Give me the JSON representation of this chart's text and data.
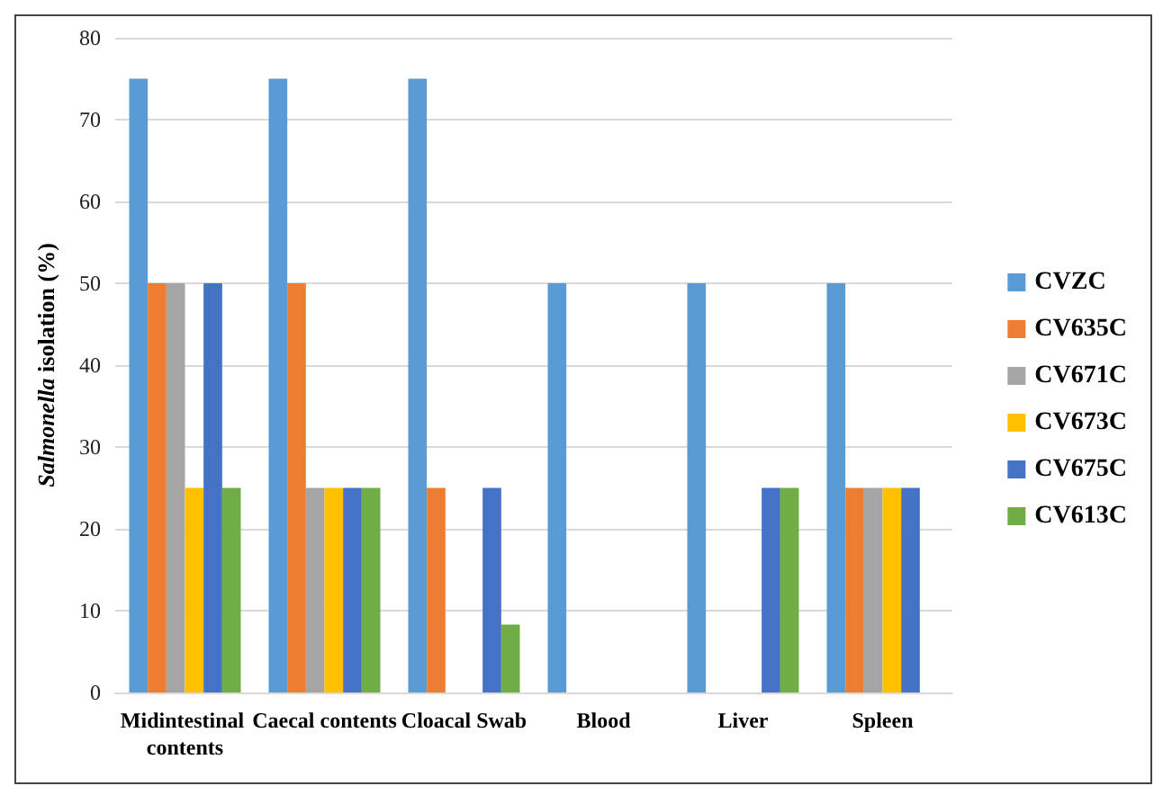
{
  "chart_data": {
    "type": "bar",
    "ylabel": "Salmonella isolation (%)",
    "categories": [
      "Midintestinal contents",
      "Caecal contents",
      "Cloacal Swab",
      "Blood",
      "Liver",
      "Spleen"
    ],
    "series": [
      {
        "name": "CVZC",
        "color": "#5b9bd5",
        "values": [
          75,
          75,
          75,
          50,
          50,
          50
        ]
      },
      {
        "name": "CV635C",
        "color": "#ed7d31",
        "values": [
          50,
          50,
          25,
          0,
          0,
          25
        ]
      },
      {
        "name": "CV671C",
        "color": "#a5a5a5",
        "values": [
          50,
          25,
          0,
          0,
          0,
          25
        ]
      },
      {
        "name": "CV673C",
        "color": "#ffc000",
        "values": [
          25,
          25,
          0,
          0,
          0,
          25
        ]
      },
      {
        "name": "CV675C",
        "color": "#4472c4",
        "values": [
          50,
          25,
          25,
          0,
          25,
          25
        ]
      },
      {
        "name": "CV613C",
        "color": "#70ad47",
        "values": [
          25,
          25,
          8.3,
          0,
          25,
          0
        ]
      }
    ],
    "ylim": [
      0,
      80
    ],
    "yticks": [
      0,
      10,
      20,
      30,
      40,
      50,
      60,
      70,
      80
    ],
    "grid": "y",
    "legend": "right"
  }
}
